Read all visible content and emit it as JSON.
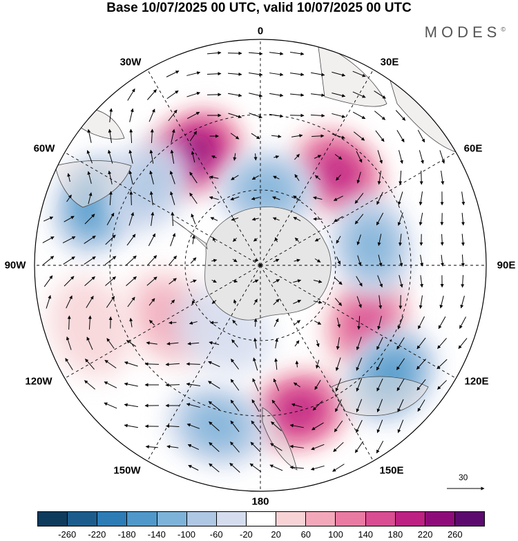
{
  "title": "Base 10/07/2025 00 UTC, valid 10/07/2025 00 UTC",
  "brand": "MODES",
  "brand_mark": "©",
  "lon_labels": [
    "0",
    "30E",
    "60E",
    "90E",
    "120E",
    "150E",
    "180",
    "150W",
    "120W",
    "90W",
    "60W",
    "30W"
  ],
  "reference_vector": {
    "label": "30"
  },
  "colorbar": {
    "ticks": [
      "-260",
      "-220",
      "-180",
      "-140",
      "-100",
      "-60",
      "-20",
      "20",
      "60",
      "100",
      "140",
      "180",
      "220",
      "260"
    ],
    "colors": [
      "#0e3a5c",
      "#1c5c8c",
      "#2d7cb5",
      "#4f98c9",
      "#7eb3d9",
      "#aec7e3",
      "#d4dcee",
      "#ffffff",
      "#f7d3d6",
      "#f3a8ba",
      "#e97aa2",
      "#d94d92",
      "#bd2182",
      "#8e0c7a",
      "#5c0a6e"
    ]
  },
  "anomaly_centers": [
    {
      "lat_from_pole": 52,
      "lon": -30,
      "value": 250
    },
    {
      "lat_from_pole": 48,
      "lon": 40,
      "value": 220
    },
    {
      "lat_from_pole": 48,
      "lon": 118,
      "value": 170
    },
    {
      "lat_from_pole": 60,
      "lon": 165,
      "value": 210
    },
    {
      "lat_from_pole": 30,
      "lon": 5,
      "value": -130
    },
    {
      "lat_from_pole": 70,
      "lon": -70,
      "value": -170
    },
    {
      "lat_from_pole": 45,
      "lon": 80,
      "value": -140
    },
    {
      "lat_from_pole": 68,
      "lon": 130,
      "value": -170
    },
    {
      "lat_from_pole": 66,
      "lon": -165,
      "value": -130
    },
    {
      "lat_from_pole": 55,
      "lon": -55,
      "value": -90
    },
    {
      "lat_from_pole": 42,
      "lon": -120,
      "value": 90
    },
    {
      "lat_from_pole": 30,
      "lon": -150,
      "value": -60
    },
    {
      "lat_from_pole": 72,
      "lon": -110,
      "value": 60
    }
  ]
}
